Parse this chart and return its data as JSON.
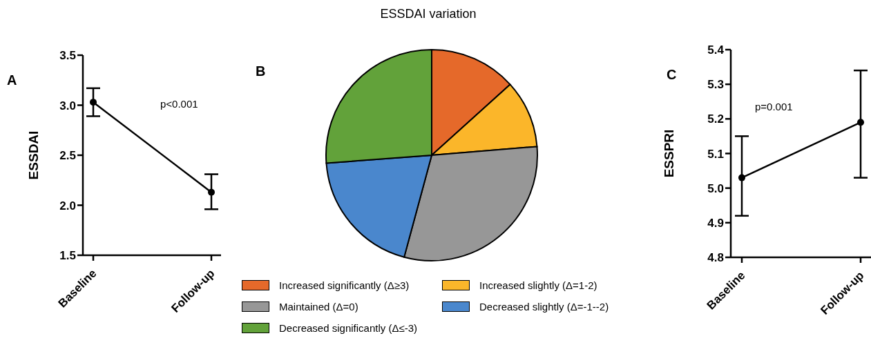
{
  "chart_data": [
    {
      "type": "line",
      "categories": [
        "Baseline",
        "Follow-up"
      ],
      "ylabel": "ESSDAI",
      "ylim": [
        1.5,
        3.5
      ],
      "yticks": [
        {
          "value": 1.5,
          "label": "1.5"
        },
        {
          "value": 2,
          "label": "2.0"
        },
        {
          "value": 2.5,
          "label": "2.5"
        },
        {
          "value": 3,
          "label": "3.0"
        },
        {
          "value": 3.5,
          "label": "3.5"
        }
      ],
      "grid": false,
      "marker": "circle",
      "line_style": "solid",
      "annotations": [
        "A",
        "p<0.001"
      ],
      "series": [
        {
          "color": "#000000",
          "values": [
            3.03,
            2.13
          ],
          "errors": [
            [
              2.89,
              3.17
            ],
            [
              1.96,
              2.31
            ]
          ]
        }
      ]
    },
    {
      "type": "pie",
      "title": "ESSDAI variation",
      "legend": "bottom",
      "annotations": [
        "B"
      ],
      "categories": [
        "Increased significantly (Δ≥3)",
        "Increased slightly (Δ=1-2)",
        "Maintained (Δ=0)",
        "Decreased slightly (Δ=-1--2)",
        "Decreased significantly (Δ≤-3)"
      ],
      "values": [
        13.3,
        10.4,
        30.5,
        19.6,
        26.2
      ],
      "colors": [
        "#e5692a",
        "#fbb62a",
        "#979797",
        "#4a87cd",
        "#62a23a"
      ]
    },
    {
      "type": "line",
      "categories": [
        "Baseline",
        "Follow-up"
      ],
      "ylabel": "ESSPRI",
      "ylim": [
        4.8,
        5.4
      ],
      "yticks": [
        4.8,
        4.9,
        {
          "value": 5,
          "label": "5.0"
        },
        5.1,
        5.2,
        5.3,
        5.4
      ],
      "grid": false,
      "marker": "circle",
      "line_style": "solid",
      "annotations": [
        "C",
        "p=0.001"
      ],
      "series": [
        {
          "color": "#000000",
          "values": [
            5.03,
            5.19
          ],
          "errors": [
            [
              4.92,
              5.15
            ],
            [
              5.03,
              5.34
            ]
          ]
        }
      ]
    }
  ]
}
